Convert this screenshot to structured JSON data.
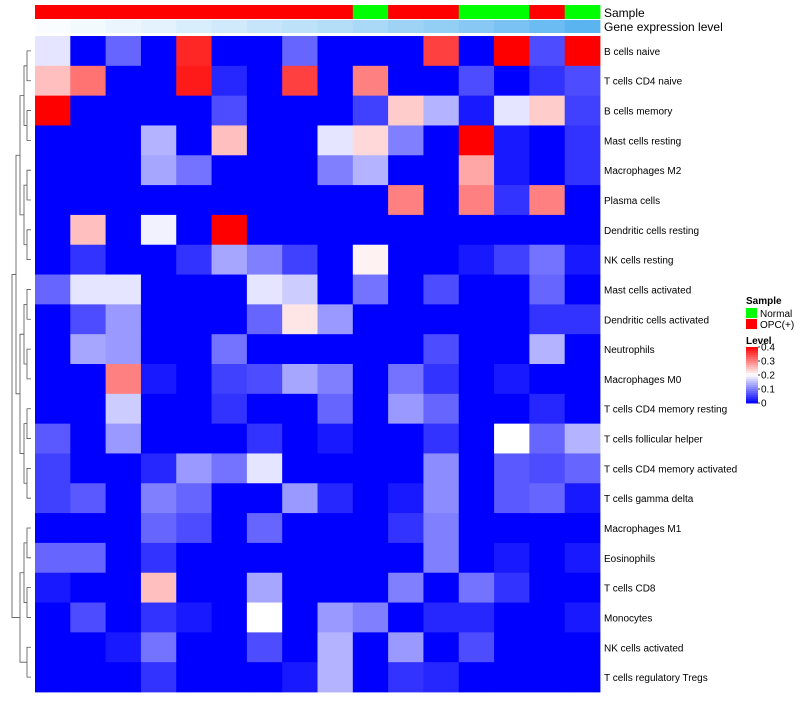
{
  "chart_data": {
    "type": "heatmap",
    "annotation_tracks": [
      "Sample",
      "Gene expression level"
    ],
    "sample_groups": [
      "OPC(+)",
      "OPC(+)",
      "OPC(+)",
      "OPC(+)",
      "OPC(+)",
      "OPC(+)",
      "OPC(+)",
      "OPC(+)",
      "OPC(+)",
      "Normal",
      "OPC(+)",
      "OPC(+)",
      "Normal",
      "Normal",
      "OPC(+)",
      "Normal"
    ],
    "expression_levels": [
      0.02,
      0.05,
      0.09,
      0.12,
      0.16,
      0.2,
      0.24,
      0.28,
      0.32,
      0.36,
      0.41,
      0.46,
      0.51,
      0.57,
      0.63,
      0.7
    ],
    "rows": [
      "B cells naive",
      "T cells CD4 naive",
      "B cells memory",
      "Mast cells resting",
      "Macrophages M2",
      "Plasma cells",
      "Dendritic cells resting",
      "NK cells resting",
      "Mast cells activated",
      "Dendritic cells activated",
      "Neutrophils",
      "Macrophages M0",
      "T cells CD4 memory resting",
      "T cells follicular helper",
      "T cells CD4 memory activated",
      "T cells gamma delta",
      "Macrophages M1",
      "Eosinophils",
      "T cells CD8",
      "Monocytes",
      "NK cells activated",
      "T cells regulatory  Tregs"
    ],
    "values": [
      [
        0.18,
        0,
        0.08,
        0,
        0.37,
        0,
        0,
        0.08,
        0,
        0,
        0,
        0.35,
        0,
        0.4,
        0.06,
        0.4
      ],
      [
        0.25,
        0.31,
        0,
        0,
        0.38,
        0.03,
        0,
        0.35,
        0,
        0.3,
        0,
        0,
        0.06,
        0,
        0.04,
        0.06
      ],
      [
        0.4,
        0,
        0,
        0,
        0,
        0.06,
        0,
        0,
        0,
        0.05,
        0.24,
        0.14,
        0.02,
        0.18,
        0.24,
        0.05
      ],
      [
        0,
        0,
        0,
        0.14,
        0,
        0.25,
        0,
        0,
        0.18,
        0.23,
        0.1,
        0,
        0.4,
        0.02,
        0,
        0.04
      ],
      [
        0,
        0,
        0,
        0.13,
        0.09,
        0,
        0,
        0,
        0.1,
        0.14,
        0,
        0,
        0.27,
        0.02,
        0,
        0.04
      ],
      [
        0,
        0,
        0,
        0,
        0,
        0,
        0,
        0,
        0,
        0,
        0.3,
        0,
        0.3,
        0.04,
        0.3,
        0
      ],
      [
        0,
        0.25,
        0,
        0.19,
        0,
        0.4,
        0,
        0,
        0,
        0,
        0,
        0,
        0,
        0,
        0,
        0
      ],
      [
        0,
        0.04,
        0,
        0,
        0.04,
        0.13,
        0.1,
        0.05,
        0,
        0.21,
        0,
        0,
        0.02,
        0.05,
        0.09,
        0.02
      ],
      [
        0.08,
        0.18,
        0.18,
        0,
        0,
        0,
        0.18,
        0.16,
        0,
        0.09,
        0,
        0.06,
        0,
        0,
        0.08,
        0
      ],
      [
        0,
        0.06,
        0.12,
        0,
        0,
        0,
        0.08,
        0.22,
        0.12,
        0,
        0,
        0,
        0,
        0,
        0.04,
        0.04
      ],
      [
        0,
        0.13,
        0.12,
        0,
        0,
        0.09,
        0,
        0,
        0,
        0,
        0,
        0.06,
        0,
        0,
        0.14,
        0
      ],
      [
        0,
        0,
        0.3,
        0.02,
        0,
        0.05,
        0.06,
        0.13,
        0.1,
        0,
        0.09,
        0.04,
        0,
        0.02,
        0,
        0
      ],
      [
        0,
        0,
        0.16,
        0,
        0,
        0.04,
        0,
        0,
        0.08,
        0,
        0.12,
        0.08,
        0,
        0,
        0.03,
        0
      ],
      [
        0.07,
        0,
        0.12,
        0,
        0,
        0,
        0.04,
        0,
        0.02,
        0,
        0,
        0.04,
        0,
        0.2,
        0.08,
        0.14
      ],
      [
        0.05,
        0,
        0,
        0.03,
        0.12,
        0.09,
        0.18,
        0,
        0,
        0,
        0,
        0.11,
        0,
        0.07,
        0.06,
        0.08
      ],
      [
        0.05,
        0.07,
        0,
        0.1,
        0.08,
        0,
        0,
        0.12,
        0.03,
        0,
        0.02,
        0.11,
        0,
        0.07,
        0.08,
        0.02
      ],
      [
        0,
        0,
        0,
        0.08,
        0.06,
        0,
        0.08,
        0,
        0,
        0,
        0.04,
        0.1,
        0,
        0,
        0,
        0
      ],
      [
        0.08,
        0.08,
        0,
        0.04,
        0,
        0,
        0,
        0,
        0,
        0,
        0,
        0.1,
        0,
        0.02,
        0,
        0.02
      ],
      [
        0.02,
        0,
        0,
        0.25,
        0,
        0,
        0.13,
        0,
        0,
        0,
        0.1,
        0,
        0.09,
        0.04,
        0,
        0
      ],
      [
        0,
        0.06,
        0,
        0.04,
        0.02,
        0,
        0.2,
        0,
        0.12,
        0.1,
        0,
        0.03,
        0.03,
        0,
        0,
        0.02
      ],
      [
        0,
        0,
        0.02,
        0.09,
        0,
        0,
        0.06,
        0,
        0.14,
        0,
        0.12,
        0,
        0.06,
        0,
        0,
        0
      ],
      [
        0,
        0,
        0,
        0.04,
        0,
        0,
        0,
        0.02,
        0.14,
        0,
        0.04,
        0.03,
        0,
        0,
        0,
        0
      ]
    ],
    "legend": {
      "sample_title": "Sample",
      "sample_entries": [
        {
          "label": "Normal",
          "color": "#00ff00"
        },
        {
          "label": "OPC(+)",
          "color": "#ff0000"
        }
      ],
      "level_title": "Level",
      "level_ticks": [
        "0.4",
        "0.3",
        "0.2",
        "0.1",
        "0"
      ],
      "level_tick_values": [
        0.4,
        0.3,
        0.2,
        0.1,
        0
      ]
    },
    "color_scale": {
      "low": "#0000ff",
      "mid": "#ffffff",
      "high": "#ff0000",
      "range": [
        0,
        0.4
      ]
    },
    "expression_scale": {
      "low": "#ffffff",
      "high": "#5ab4f0"
    },
    "dendrogram": "rows"
  }
}
